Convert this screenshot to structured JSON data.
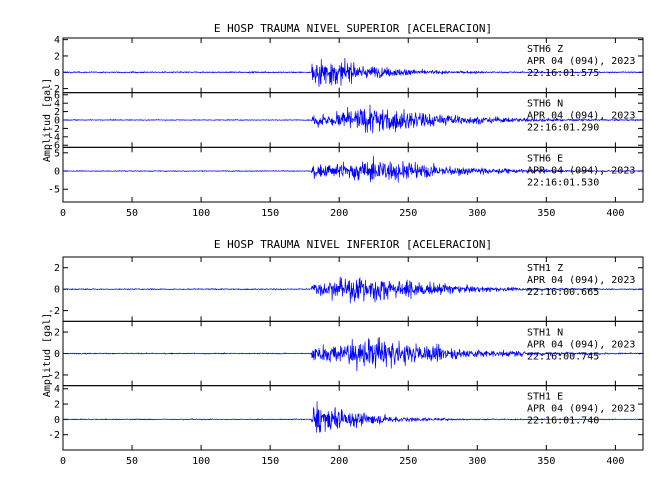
{
  "chart_data": [
    {
      "type": "line",
      "title": "E HOSP TRAUMA NIVEL SUPERIOR [ACELERACION]",
      "ylabel": "Amplitud [gal]",
      "xlabel": "",
      "xlim": [
        0,
        420
      ],
      "x_ticks": [
        0,
        50,
        100,
        150,
        200,
        250,
        300,
        350,
        400
      ],
      "line_color": "#0000ff",
      "traces": [
        {
          "station": "STH6",
          "component": "Z",
          "date": "APR 04 (094), 2023",
          "time": "22:16:01.575",
          "ylim": [
            -2.5,
            4.2
          ],
          "y_ticks": [
            -2,
            0,
            2,
            4
          ],
          "onset_s": 180,
          "peak_s": 181,
          "peak_amp": 3.8,
          "decay_s": 40,
          "noise": 0.08
        },
        {
          "station": "STH6",
          "component": "N",
          "date": "APR 04 (094), 2023",
          "time": "22:16:01.290",
          "ylim": [
            -6.5,
            6.5
          ],
          "y_ticks": [
            -6,
            -4,
            -2,
            0,
            2,
            4,
            6
          ],
          "onset_s": 180,
          "peak_s": 230,
          "peak_amp": 5.5,
          "decay_s": 55,
          "noise": 0.1
        },
        {
          "station": "STH6",
          "component": "E",
          "date": "APR 04 (094), 2023",
          "time": "22:16:01.530",
          "ylim": [
            -8.5,
            6.5
          ],
          "y_ticks": [
            -5,
            0,
            5
          ],
          "onset_s": 180,
          "peak_s": 235,
          "peak_amp": 6.0,
          "decay_s": 50,
          "noise": 0.12
        }
      ]
    },
    {
      "type": "line",
      "title": "E HOSP TRAUMA NIVEL INFERIOR [ACELERACION]",
      "ylabel": "Amplitud [gal]",
      "xlabel": "",
      "xlim": [
        0,
        420
      ],
      "x_ticks": [
        0,
        50,
        100,
        150,
        200,
        250,
        300,
        350,
        400
      ],
      "line_color": "#0000ff",
      "traces": [
        {
          "station": "STH1",
          "component": "Z",
          "date": "APR 04 (094), 2023",
          "time": "22:16:00.665",
          "ylim": [
            -3,
            3
          ],
          "y_ticks": [
            -2,
            0,
            2
          ],
          "onset_s": 180,
          "peak_s": 230,
          "peak_amp": 2.3,
          "decay_s": 45,
          "noise": 0.05
        },
        {
          "station": "STH1",
          "component": "N",
          "date": "APR 04 (094), 2023",
          "time": "22:16:00.745",
          "ylim": [
            -3,
            3
          ],
          "y_ticks": [
            -2,
            0,
            2
          ],
          "onset_s": 180,
          "peak_s": 230,
          "peak_amp": 2.5,
          "decay_s": 55,
          "noise": 0.05
        },
        {
          "station": "STH1",
          "component": "E",
          "date": "APR 04 (094), 2023",
          "time": "22:16:01.740",
          "ylim": [
            -4,
            4.4
          ],
          "y_ticks": [
            -2,
            0,
            2,
            4
          ],
          "onset_s": 180,
          "peak_s": 181,
          "peak_amp": 4.0,
          "decay_s": 35,
          "noise": 0.06
        }
      ]
    }
  ]
}
